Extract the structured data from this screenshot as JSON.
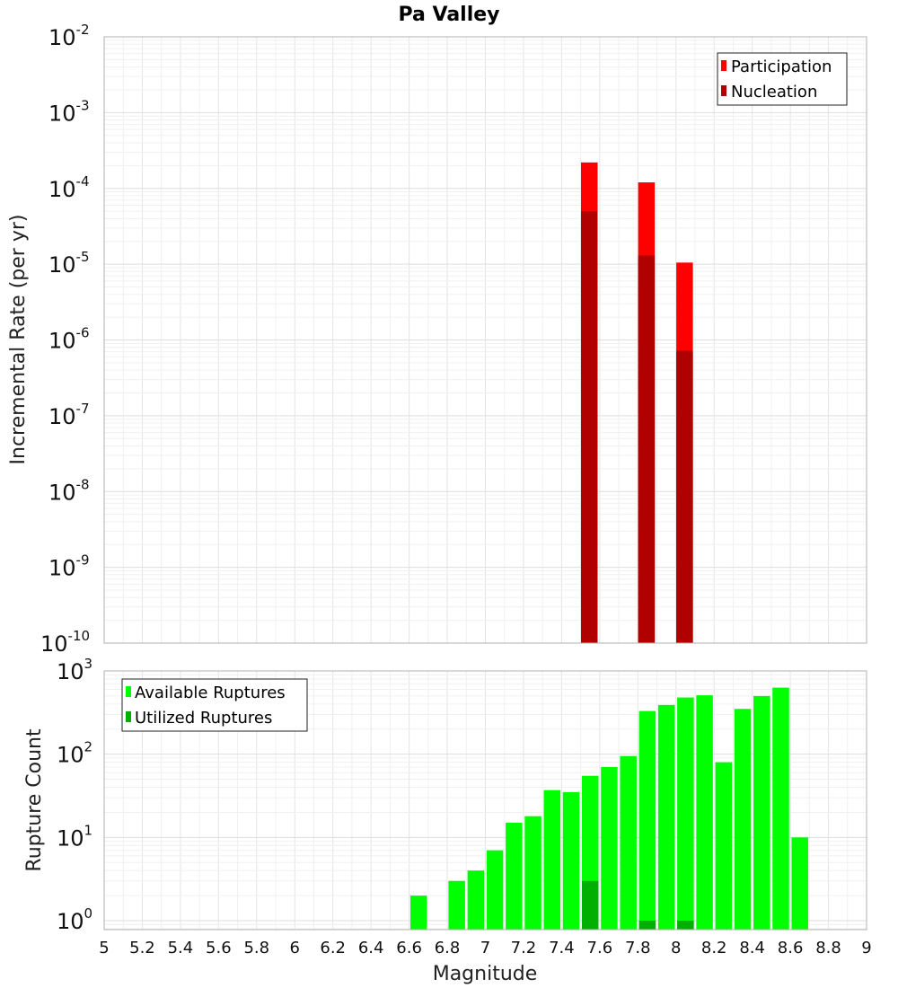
{
  "chart_data": [
    {
      "type": "bar",
      "title": "Pa Valley",
      "xlabel": "",
      "ylabel": "Incremental Rate (per yr)",
      "yscale": "log",
      "ylim": [
        1e-10,
        0.01
      ],
      "xlim": [
        5,
        9
      ],
      "grid": true,
      "legend_position": "top-right",
      "series": [
        {
          "name": "Participation",
          "color": "#ff0000",
          "x": [
            7.55,
            7.85,
            8.05
          ],
          "values": [
            0.00022,
            0.00012,
            1.05e-05
          ]
        },
        {
          "name": "Nucleation",
          "color": "#b00000",
          "x": [
            7.55,
            7.85,
            8.05
          ],
          "values": [
            5e-05,
            1.3e-05,
            7.2e-07
          ]
        }
      ]
    },
    {
      "type": "bar",
      "title": "",
      "xlabel": "Magnitude",
      "ylabel": "Rupture Count",
      "yscale": "log",
      "ylim": [
        0.78,
        1000
      ],
      "xlim": [
        5,
        9
      ],
      "grid": true,
      "legend_position": "top-left",
      "x_ticks": [
        "5",
        "5.2",
        "5.4",
        "5.6",
        "5.8",
        "6",
        "6.2",
        "6.4",
        "6.6",
        "6.8",
        "7",
        "7.2",
        "7.4",
        "7.6",
        "7.8",
        "8",
        "8.2",
        "8.4",
        "8.6",
        "8.8",
        "9"
      ],
      "series": [
        {
          "name": "Available Ruptures",
          "color": "#00ff00",
          "x": [
            6.65,
            6.85,
            6.95,
            7.05,
            7.15,
            7.25,
            7.35,
            7.45,
            7.55,
            7.65,
            7.75,
            7.85,
            7.95,
            8.05,
            8.15,
            8.25,
            8.35,
            8.45,
            8.55,
            8.65
          ],
          "values": [
            2,
            3,
            4,
            7,
            15,
            18,
            37,
            35,
            55,
            70,
            95,
            330,
            390,
            480,
            510,
            80,
            350,
            500,
            630,
            10
          ]
        },
        {
          "name": "Utilized Ruptures",
          "color": "#00b000",
          "x": [
            7.55,
            7.85,
            8.05
          ],
          "values": [
            3,
            1,
            1
          ]
        }
      ]
    }
  ]
}
